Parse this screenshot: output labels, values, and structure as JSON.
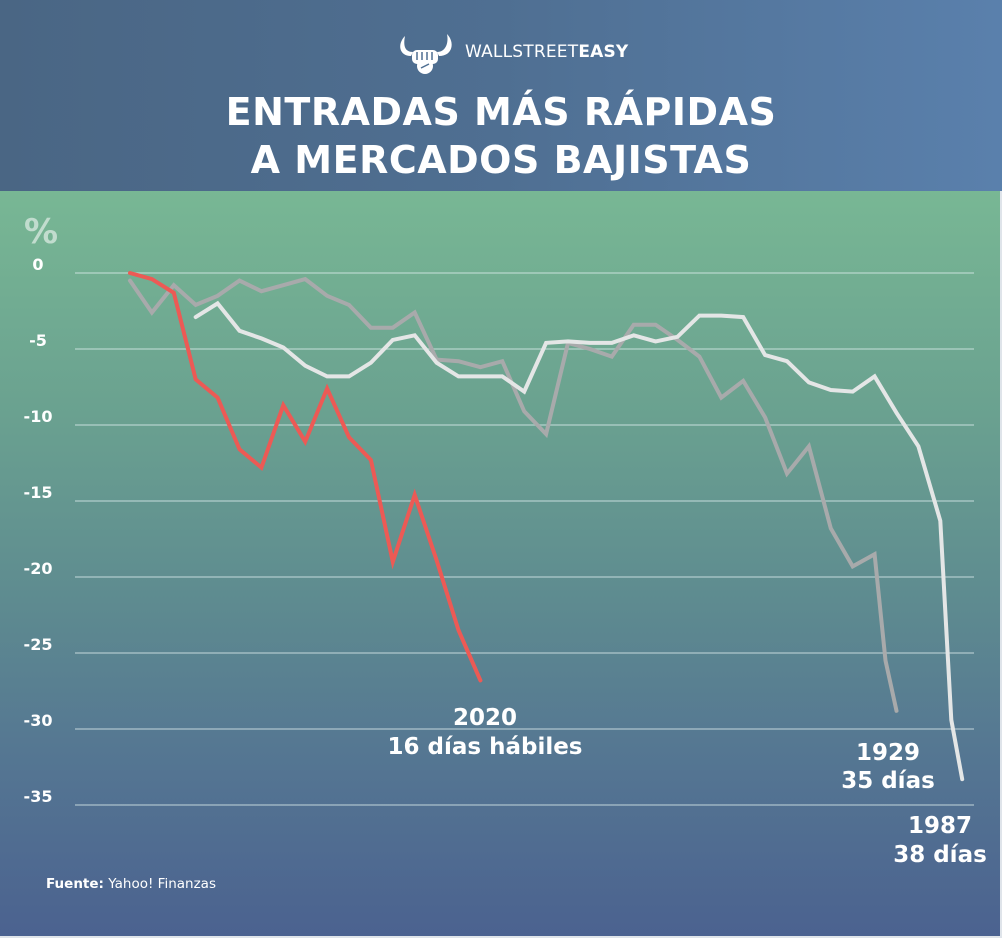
{
  "brand": {
    "logo_icon": "bull-horns-fist-icon",
    "name_light": "WALLSTREET",
    "name_bold": "EASY"
  },
  "title": {
    "line1": "ENTRADAS MÁS RÁPIDAS",
    "line2": "A MERCADOS BAJISTAS"
  },
  "source": {
    "label": "Fuente:",
    "value": "Yahoo! Finanzas"
  },
  "chart_data": {
    "type": "line",
    "title": "ENTRADAS MÁS RÁPIDAS A MERCADOS BAJISTAS",
    "xlabel": "días hábiles",
    "ylabel": "%",
    "ylim": [
      -35,
      0
    ],
    "xlim": [
      0,
      38
    ],
    "yticks": [
      0,
      -5,
      -10,
      -15,
      -20,
      -25,
      -30,
      -35
    ],
    "ytick_labels": [
      "0",
      "-5",
      "-10",
      "-15",
      "-20",
      "-25",
      "-30",
      "-35"
    ],
    "grid": "horizontal",
    "legend": "none",
    "series": [
      {
        "name": "2020",
        "label_line1": "2020",
        "label_line2": "16 días hábiles",
        "color": "#ec5a55",
        "x": [
          0,
          1,
          2,
          3,
          4,
          5,
          6,
          7,
          8,
          9,
          10,
          11,
          12,
          13,
          14,
          15,
          16
        ],
        "values": [
          0,
          -0.4,
          -1.3,
          -7.0,
          -8.2,
          -11.6,
          -12.8,
          -8.7,
          -11.1,
          -7.6,
          -10.8,
          -12.3,
          -19.0,
          -14.6,
          -18.9,
          -23.5,
          -26.8
        ]
      },
      {
        "name": "1929",
        "label_line1": "1929",
        "label_line2": "35 días",
        "color": "#a8aaab",
        "x": [
          0,
          1,
          2,
          3,
          4,
          5,
          6,
          7,
          8,
          9,
          10,
          11,
          12,
          13,
          14,
          15,
          16,
          17,
          18,
          19,
          20,
          21,
          22,
          23,
          24,
          25,
          26,
          27,
          28,
          29,
          30,
          31,
          32,
          33,
          34,
          34.5,
          35
        ],
        "values": [
          -0.5,
          -2.6,
          -0.8,
          -2.1,
          -1.5,
          -0.5,
          -1.2,
          -0.8,
          -0.4,
          -1.5,
          -2.1,
          -3.6,
          -3.6,
          -2.6,
          -5.7,
          -5.8,
          -6.2,
          -5.8,
          -9.1,
          -10.6,
          -4.6,
          -5.0,
          -5.5,
          -3.4,
          -3.4,
          -4.4,
          -5.5,
          -8.2,
          -7.1,
          -9.5,
          -13.2,
          -11.4,
          -16.8,
          -19.3,
          -18.5,
          -25.5,
          -28.8
        ]
      },
      {
        "name": "1987",
        "label_line1": "1987",
        "label_line2": "38 días",
        "color": "#e4e6e6",
        "x": [
          3,
          4,
          5,
          6,
          7,
          8,
          9,
          10,
          11,
          12,
          13,
          14,
          15,
          16,
          17,
          18,
          19,
          20,
          21,
          22,
          23,
          24,
          25,
          26,
          27,
          28,
          29,
          30,
          31,
          32,
          33,
          34,
          35,
          36,
          37,
          37.5,
          38
        ],
        "values": [
          -2.9,
          -2.0,
          -3.8,
          -4.3,
          -4.9,
          -6.1,
          -6.8,
          -6.8,
          -5.9,
          -4.4,
          -4.1,
          -5.9,
          -6.8,
          -6.8,
          -6.8,
          -7.8,
          -4.6,
          -4.5,
          -4.6,
          -4.6,
          -4.1,
          -4.5,
          -4.2,
          -2.8,
          -2.8,
          -2.9,
          -5.4,
          -5.8,
          -7.2,
          -7.7,
          -7.8,
          -6.8,
          -9.2,
          -11.4,
          -16.3,
          -29.4,
          -33.3
        ]
      }
    ]
  }
}
